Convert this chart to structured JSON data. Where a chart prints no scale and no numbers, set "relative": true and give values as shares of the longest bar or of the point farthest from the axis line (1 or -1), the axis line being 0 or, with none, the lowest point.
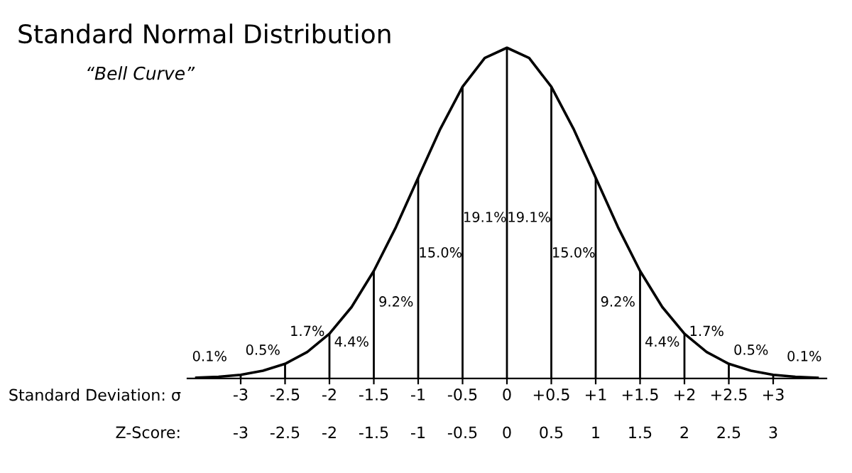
{
  "chart_data": {
    "type": "line",
    "title": "Standard Normal Distribution",
    "subtitle": "“Bell Curve”",
    "relative": true,
    "x": [
      -3.5,
      -3.25,
      -3,
      -2.75,
      -2.5,
      -2.25,
      -2,
      -1.75,
      -1.5,
      -1.25,
      -1,
      -0.75,
      -0.5,
      -0.25,
      0,
      0.25,
      0.5,
      0.75,
      1,
      1.25,
      1.5,
      1.75,
      2,
      2.25,
      2.5,
      2.75,
      3,
      3.25,
      3.5
    ],
    "series": [
      {
        "color": "#000000",
        "values": [
          0.002,
          0.005,
          0.011,
          0.023,
          0.044,
          0.08,
          0.135,
          0.216,
          0.325,
          0.458,
          0.607,
          0.755,
          0.882,
          0.969,
          1,
          0.969,
          0.882,
          0.755,
          0.607,
          0.458,
          0.325,
          0.216,
          0.135,
          0.08,
          0.044,
          0.023,
          0.011,
          0.005,
          0.002
        ]
      }
    ],
    "xlim": [
      -3.6,
      3.6
    ],
    "xticks": [
      {
        "value": -3,
        "label": "-3"
      },
      {
        "value": -2.5,
        "label": "-2.5"
      },
      {
        "value": -2,
        "label": "-2"
      },
      {
        "value": -1.5,
        "label": "-1.5"
      },
      {
        "value": -1,
        "label": "-1"
      },
      {
        "value": -0.5,
        "label": "-0.5"
      },
      0,
      {
        "value": 0.5,
        "label": "+0.5"
      },
      {
        "value": 1,
        "label": "+1"
      },
      {
        "value": 1.5,
        "label": "+1.5"
      },
      {
        "value": 2,
        "label": "+2"
      },
      {
        "value": 2.5,
        "label": "+2.5"
      },
      {
        "value": 3,
        "label": "+3"
      }
    ],
    "xlabel": "Standard Deviation: σ",
    "x2ticks": [
      {
        "value": -3,
        "label": "-3"
      },
      {
        "value": -2.5,
        "label": "-2.5"
      },
      {
        "value": -2,
        "label": "-2"
      },
      {
        "value": -1.5,
        "label": "-1.5"
      },
      {
        "value": -1,
        "label": "-1"
      },
      {
        "value": -0.5,
        "label": "-0.5"
      },
      0,
      {
        "value": 0.5,
        "label": "0.5"
      },
      {
        "value": 1,
        "label": "1"
      },
      {
        "value": 1.5,
        "label": "1.5"
      },
      {
        "value": 2,
        "label": "2"
      },
      {
        "value": 2.5,
        "label": "2.5"
      },
      {
        "value": 3,
        "label": "3"
      }
    ],
    "x2lim": [
      -3.6,
      3.6
    ],
    "x2label": "Z-Score:",
    "annotations": [
      "0.1%",
      "0.5%",
      "1.7%",
      "4.4%",
      "9.2%",
      "15.0%",
      "19.1%",
      "19.1%",
      "15.0%",
      "9.2%",
      "4.4%",
      "1.7%",
      "0.5%",
      "0.1%"
    ],
    "grid": "x",
    "legend": false,
    "marker": "none",
    "line_style": "solid"
  }
}
